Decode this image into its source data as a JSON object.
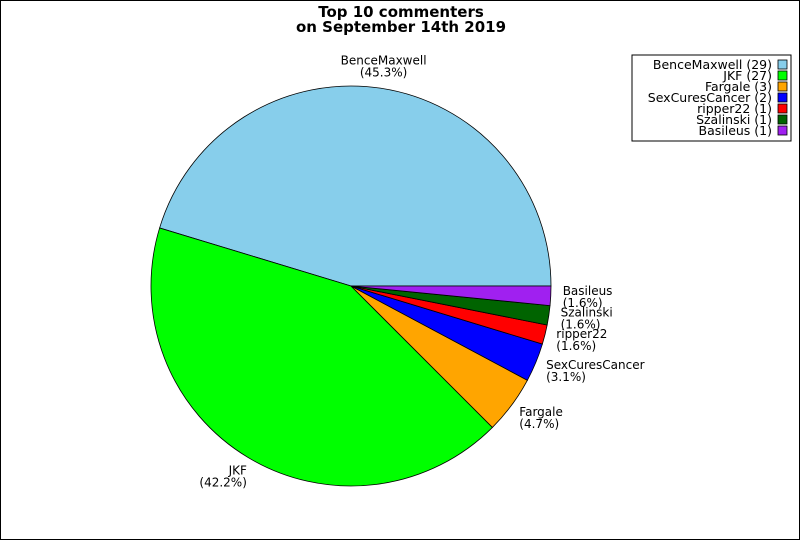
{
  "chart_data": {
    "type": "pie",
    "title_lines": [
      "Top 10 commenters",
      "on September 14th 2019"
    ],
    "legend_position": "top-right",
    "slices": [
      {
        "name": "BenceMaxwell",
        "value": 29,
        "percent": "(45.3%)",
        "legend": "BenceMaxwell (29)",
        "color": "#87ceeb"
      },
      {
        "name": "JKF",
        "value": 27,
        "percent": "(42.2%)",
        "legend": "JKF (27)",
        "color": "#00ff00"
      },
      {
        "name": "Fargale",
        "value": 3,
        "percent": "(4.7%)",
        "legend": "Fargale (3)",
        "color": "#ffa500"
      },
      {
        "name": "SexCuresCancer",
        "value": 2,
        "percent": "(3.1%)",
        "legend": "SexCuresCancer (2)",
        "color": "#0000ff"
      },
      {
        "name": "ripper22",
        "value": 1,
        "percent": "(1.6%)",
        "legend": "ripper22 (1)",
        "color": "#ff0000"
      },
      {
        "name": "Szalinski",
        "value": 1,
        "percent": "(1.6%)",
        "legend": "Szalinski (1)",
        "color": "#006400"
      },
      {
        "name": "Basileus",
        "value": 1,
        "percent": "(1.6%)",
        "legend": "Basileus (1)",
        "color": "#a020f0"
      }
    ]
  }
}
